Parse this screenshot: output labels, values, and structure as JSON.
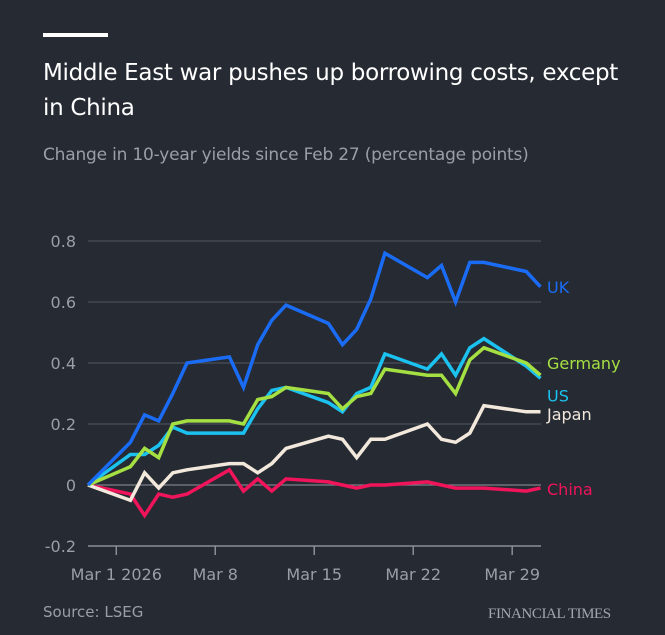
{
  "header": {
    "title": "Middle East war pushes up borrowing costs, except in China",
    "subtitle": "Change in 10-year yields since Feb 27 (percentage points)"
  },
  "footer": {
    "source": "Source: LSEG",
    "brand": "FINANCIAL TIMES"
  },
  "chart_data": {
    "type": "line",
    "title": "Middle East war pushes up borrowing costs, except in China",
    "subtitle": "Change in 10-year yields since Feb 27 (percentage points)",
    "xlabel": "",
    "ylabel": "percentage points",
    "ylim": [
      -0.2,
      0.8
    ],
    "yticks": [
      {
        "value": 0.8,
        "label": "0.8"
      },
      {
        "value": 0.6,
        "label": "0.6"
      },
      {
        "value": 0.4,
        "label": "0.4"
      },
      {
        "value": 0.2,
        "label": "0.2"
      },
      {
        "value": 0,
        "label": "0"
      },
      {
        "value": -0.2,
        "label": "-0.2"
      }
    ],
    "xticks": [
      {
        "day": 2,
        "label": "Mar 1 2026"
      },
      {
        "day": 9,
        "label": "Mar 8"
      },
      {
        "day": 16,
        "label": "Mar 15"
      },
      {
        "day": 23,
        "label": "Mar 22"
      },
      {
        "day": 30,
        "label": "Mar 29"
      }
    ],
    "x_unit": "days since Feb 27 2026",
    "xlim": [
      0,
      32
    ],
    "x": [
      "Feb 27",
      "Mar 2",
      "Mar 3",
      "Mar 4",
      "Mar 5",
      "Mar 6",
      "Mar 9",
      "Mar 10",
      "Mar 11",
      "Mar 12",
      "Mar 13",
      "Mar 16",
      "Mar 17",
      "Mar 18",
      "Mar 19",
      "Mar 20",
      "Mar 23",
      "Mar 24",
      "Mar 25",
      "Mar 26",
      "Mar 27",
      "Mar 30",
      "Mar 31"
    ],
    "x_days": [
      0,
      3,
      4,
      5,
      6,
      7,
      10,
      11,
      12,
      13,
      14,
      17,
      18,
      19,
      20,
      21,
      24,
      25,
      26,
      27,
      28,
      31,
      32
    ],
    "grid": true,
    "legend": "direct labels at right end of lines",
    "series": [
      {
        "name": "UK",
        "color": "#1a6cf5",
        "values": [
          0,
          0.14,
          0.23,
          0.21,
          0.3,
          0.4,
          0.42,
          0.32,
          0.46,
          0.54,
          0.59,
          0.53,
          0.46,
          0.51,
          0.61,
          0.76,
          0.68,
          0.72,
          0.6,
          0.73,
          0.73,
          0.7,
          0.65
        ]
      },
      {
        "name": "Germany",
        "color": "#a5e043",
        "values": [
          0,
          0.06,
          0.12,
          0.09,
          0.2,
          0.21,
          0.21,
          0.2,
          0.28,
          0.29,
          0.32,
          0.3,
          0.25,
          0.29,
          0.3,
          0.38,
          0.36,
          0.36,
          0.3,
          0.41,
          0.45,
          0.4,
          0.36
        ]
      },
      {
        "name": "US",
        "color": "#1cc2ef",
        "values": [
          0,
          0.1,
          0.1,
          0.13,
          0.19,
          0.17,
          0.17,
          0.17,
          0.25,
          0.31,
          0.32,
          0.27,
          0.24,
          0.3,
          0.32,
          0.43,
          0.38,
          0.43,
          0.36,
          0.45,
          0.48,
          0.39,
          0.35
        ]
      },
      {
        "name": "Japan",
        "color": "#f2e8dc",
        "values": [
          0,
          -0.05,
          0.04,
          -0.01,
          0.04,
          0.05,
          0.07,
          0.07,
          0.04,
          0.07,
          0.12,
          0.16,
          0.15,
          0.09,
          0.15,
          0.15,
          0.2,
          0.15,
          0.14,
          0.17,
          0.26,
          0.24,
          0.24
        ]
      },
      {
        "name": "China",
        "color": "#f0145a",
        "values": [
          0,
          -0.03,
          -0.1,
          -0.03,
          -0.04,
          -0.03,
          0.05,
          -0.02,
          0.02,
          -0.02,
          0.02,
          0.01,
          0.0,
          -0.01,
          0.0,
          0.0,
          0.01,
          0.0,
          -0.01,
          -0.01,
          -0.01,
          -0.02,
          -0.01
        ]
      }
    ],
    "series_labels": {
      "UK": {
        "text": "UK",
        "color": "#1a6cf5"
      },
      "Germany": {
        "text": "Germany",
        "color": "#a5e043"
      },
      "US": {
        "text": "US",
        "color": "#1cc2ef"
      },
      "Japan": {
        "text": "Japan",
        "color": "#f2e8dc"
      },
      "China": {
        "text": "China",
        "color": "#f0145a"
      }
    }
  }
}
